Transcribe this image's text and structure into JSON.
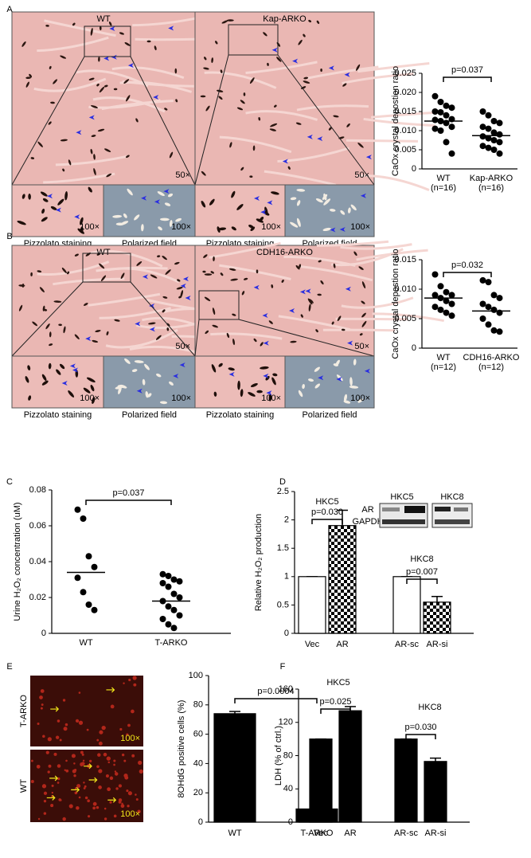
{
  "chart_data": [
    {
      "type": "dotplot",
      "panel": "A",
      "y_label": "CaOx crystal depostion ratio",
      "ylim": [
        0,
        0.025
      ],
      "yticks": [
        0,
        0.005,
        {
          "value": 0.01,
          "label": "0.010"
        },
        0.015,
        {
          "value": 0.02,
          "label": "0.020"
        },
        0.025
      ],
      "groups": [
        {
          "name": "WT",
          "note": "(n=16)",
          "mean": 0.0125,
          "values": [
            0.019,
            0.0175,
            0.0165,
            0.016,
            0.015,
            0.0148,
            0.014,
            0.013,
            0.0128,
            0.0125,
            0.012,
            0.011,
            0.0105,
            0.01,
            0.007,
            0.004
          ]
        },
        {
          "name": "Kap-ARKO",
          "note": "(n=16)",
          "mean": 0.0087,
          "values": [
            0.015,
            0.014,
            0.0125,
            0.012,
            0.011,
            0.0105,
            0.0095,
            0.009,
            0.0085,
            0.008,
            0.0075,
            0.007,
            0.006,
            0.0055,
            0.005,
            0.004
          ]
        }
      ],
      "comparisons": [
        "p=0.037"
      ]
    },
    {
      "type": "dotplot",
      "panel": "B",
      "y_label": "CaOx crystal depostion ratio",
      "ylim": [
        0,
        0.015
      ],
      "yticks": [
        0,
        0.005,
        {
          "value": 0.01,
          "label": "0.010"
        },
        0.015
      ],
      "groups": [
        {
          "name": "WT",
          "note": "(n=12)",
          "mean": 0.0085,
          "values": [
            0.0125,
            0.0105,
            0.0095,
            0.009,
            0.009,
            0.0085,
            0.008,
            0.0075,
            0.007,
            0.0065,
            0.006,
            0.0055
          ]
        },
        {
          "name": "CDH16-ARKO",
          "note": "(n=12)",
          "mean": 0.0063,
          "values": [
            0.0115,
            0.0112,
            0.009,
            0.0085,
            0.0075,
            0.007,
            0.0065,
            0.006,
            0.005,
            0.004,
            0.003,
            0.0028
          ]
        }
      ],
      "comparisons": [
        "p=0.032"
      ]
    },
    {
      "type": "dotplot",
      "panel": "C",
      "y_label": "Urine H₂O₂ concentration (uM)",
      "ylim": [
        0,
        0.08
      ],
      "yticks": [
        0,
        0.02,
        0.04,
        0.06,
        0.08
      ],
      "groups": [
        {
          "name": "WT",
          "mean": 0.034,
          "values": [
            0.069,
            0.064,
            0.043,
            0.037,
            0.031,
            0.023,
            0.016,
            0.013
          ]
        },
        {
          "name": "T-ARKO",
          "mean": 0.018,
          "values": [
            0.033,
            0.032,
            0.03,
            0.029,
            0.028,
            0.026,
            0.022,
            0.02,
            0.018,
            0.015,
            0.013,
            0.01,
            0.008,
            0.005,
            0.003
          ]
        }
      ],
      "comparisons": [
        "p=0.037"
      ]
    },
    {
      "type": "bar",
      "panel": "D",
      "y_label": "Relative H₂O₂ production",
      "ylim": [
        0,
        2.5
      ],
      "yticks": [
        0,
        0.5,
        1,
        1.5,
        2,
        2.5
      ],
      "categories": [
        "Vec",
        "AR",
        "AR-sc",
        "AR-si"
      ],
      "values": [
        1,
        1.9,
        1,
        0.55
      ],
      "errors": [
        0,
        0.27,
        0,
        0.1
      ],
      "fills": [
        "white",
        "checker",
        "white",
        "checker"
      ],
      "color": "#000000",
      "group_labels": [
        "HKC5",
        "HKC8"
      ],
      "comparisons": [
        "p=0.030",
        "p=0.007"
      ],
      "blot": {
        "columns": [
          "HKC5",
          "HKC8"
        ],
        "rows": [
          "AR",
          "GAPDH"
        ]
      }
    },
    {
      "type": "bar",
      "panel": "E",
      "y_label": "8OHdG positive cells (%)",
      "ylim": [
        0,
        100
      ],
      "yticks": [
        0,
        20,
        40,
        60,
        80,
        100
      ],
      "categories": [
        "WT",
        "T-ARKO"
      ],
      "values": [
        74,
        9
      ],
      "errors": [
        1.5,
        0.7
      ],
      "fills": [
        "solid",
        "solid"
      ],
      "color": "#000000",
      "comparisons": [
        "p=0.0004"
      ]
    },
    {
      "type": "bar",
      "panel": "F",
      "y_label": "LDH   (% of ctrl.)",
      "ylim": [
        0,
        160
      ],
      "yticks": [
        0,
        40,
        80,
        120,
        160
      ],
      "categories": [
        "Vec",
        "AR",
        "AR-sc",
        "AR-si"
      ],
      "values": [
        100,
        134,
        100,
        73
      ],
      "errors": [
        0,
        5,
        0,
        4
      ],
      "fills": [
        "solid",
        "solid",
        "solid",
        "solid"
      ],
      "color": "#000000",
      "group_labels": [
        "HKC5",
        "HKC8"
      ],
      "comparisons": [
        "p=0.025",
        "p=0.030"
      ]
    }
  ],
  "histology": [
    {
      "columns": [
        "WT",
        "Kap-ARKO"
      ],
      "low_magnification": "50×",
      "high_magnification": "100×",
      "captions": [
        "Pizzolato staining",
        "Polarized field"
      ]
    },
    {
      "columns": [
        "WT",
        "CDH16-ARKO"
      ],
      "low_magnification": "50×",
      "high_magnification": "100×",
      "captions": [
        "Pizzolato staining",
        "Polarized field"
      ]
    }
  ],
  "staining_images": {
    "rows": [
      "T-ARKO",
      "WT"
    ],
    "magnification": "100×"
  }
}
